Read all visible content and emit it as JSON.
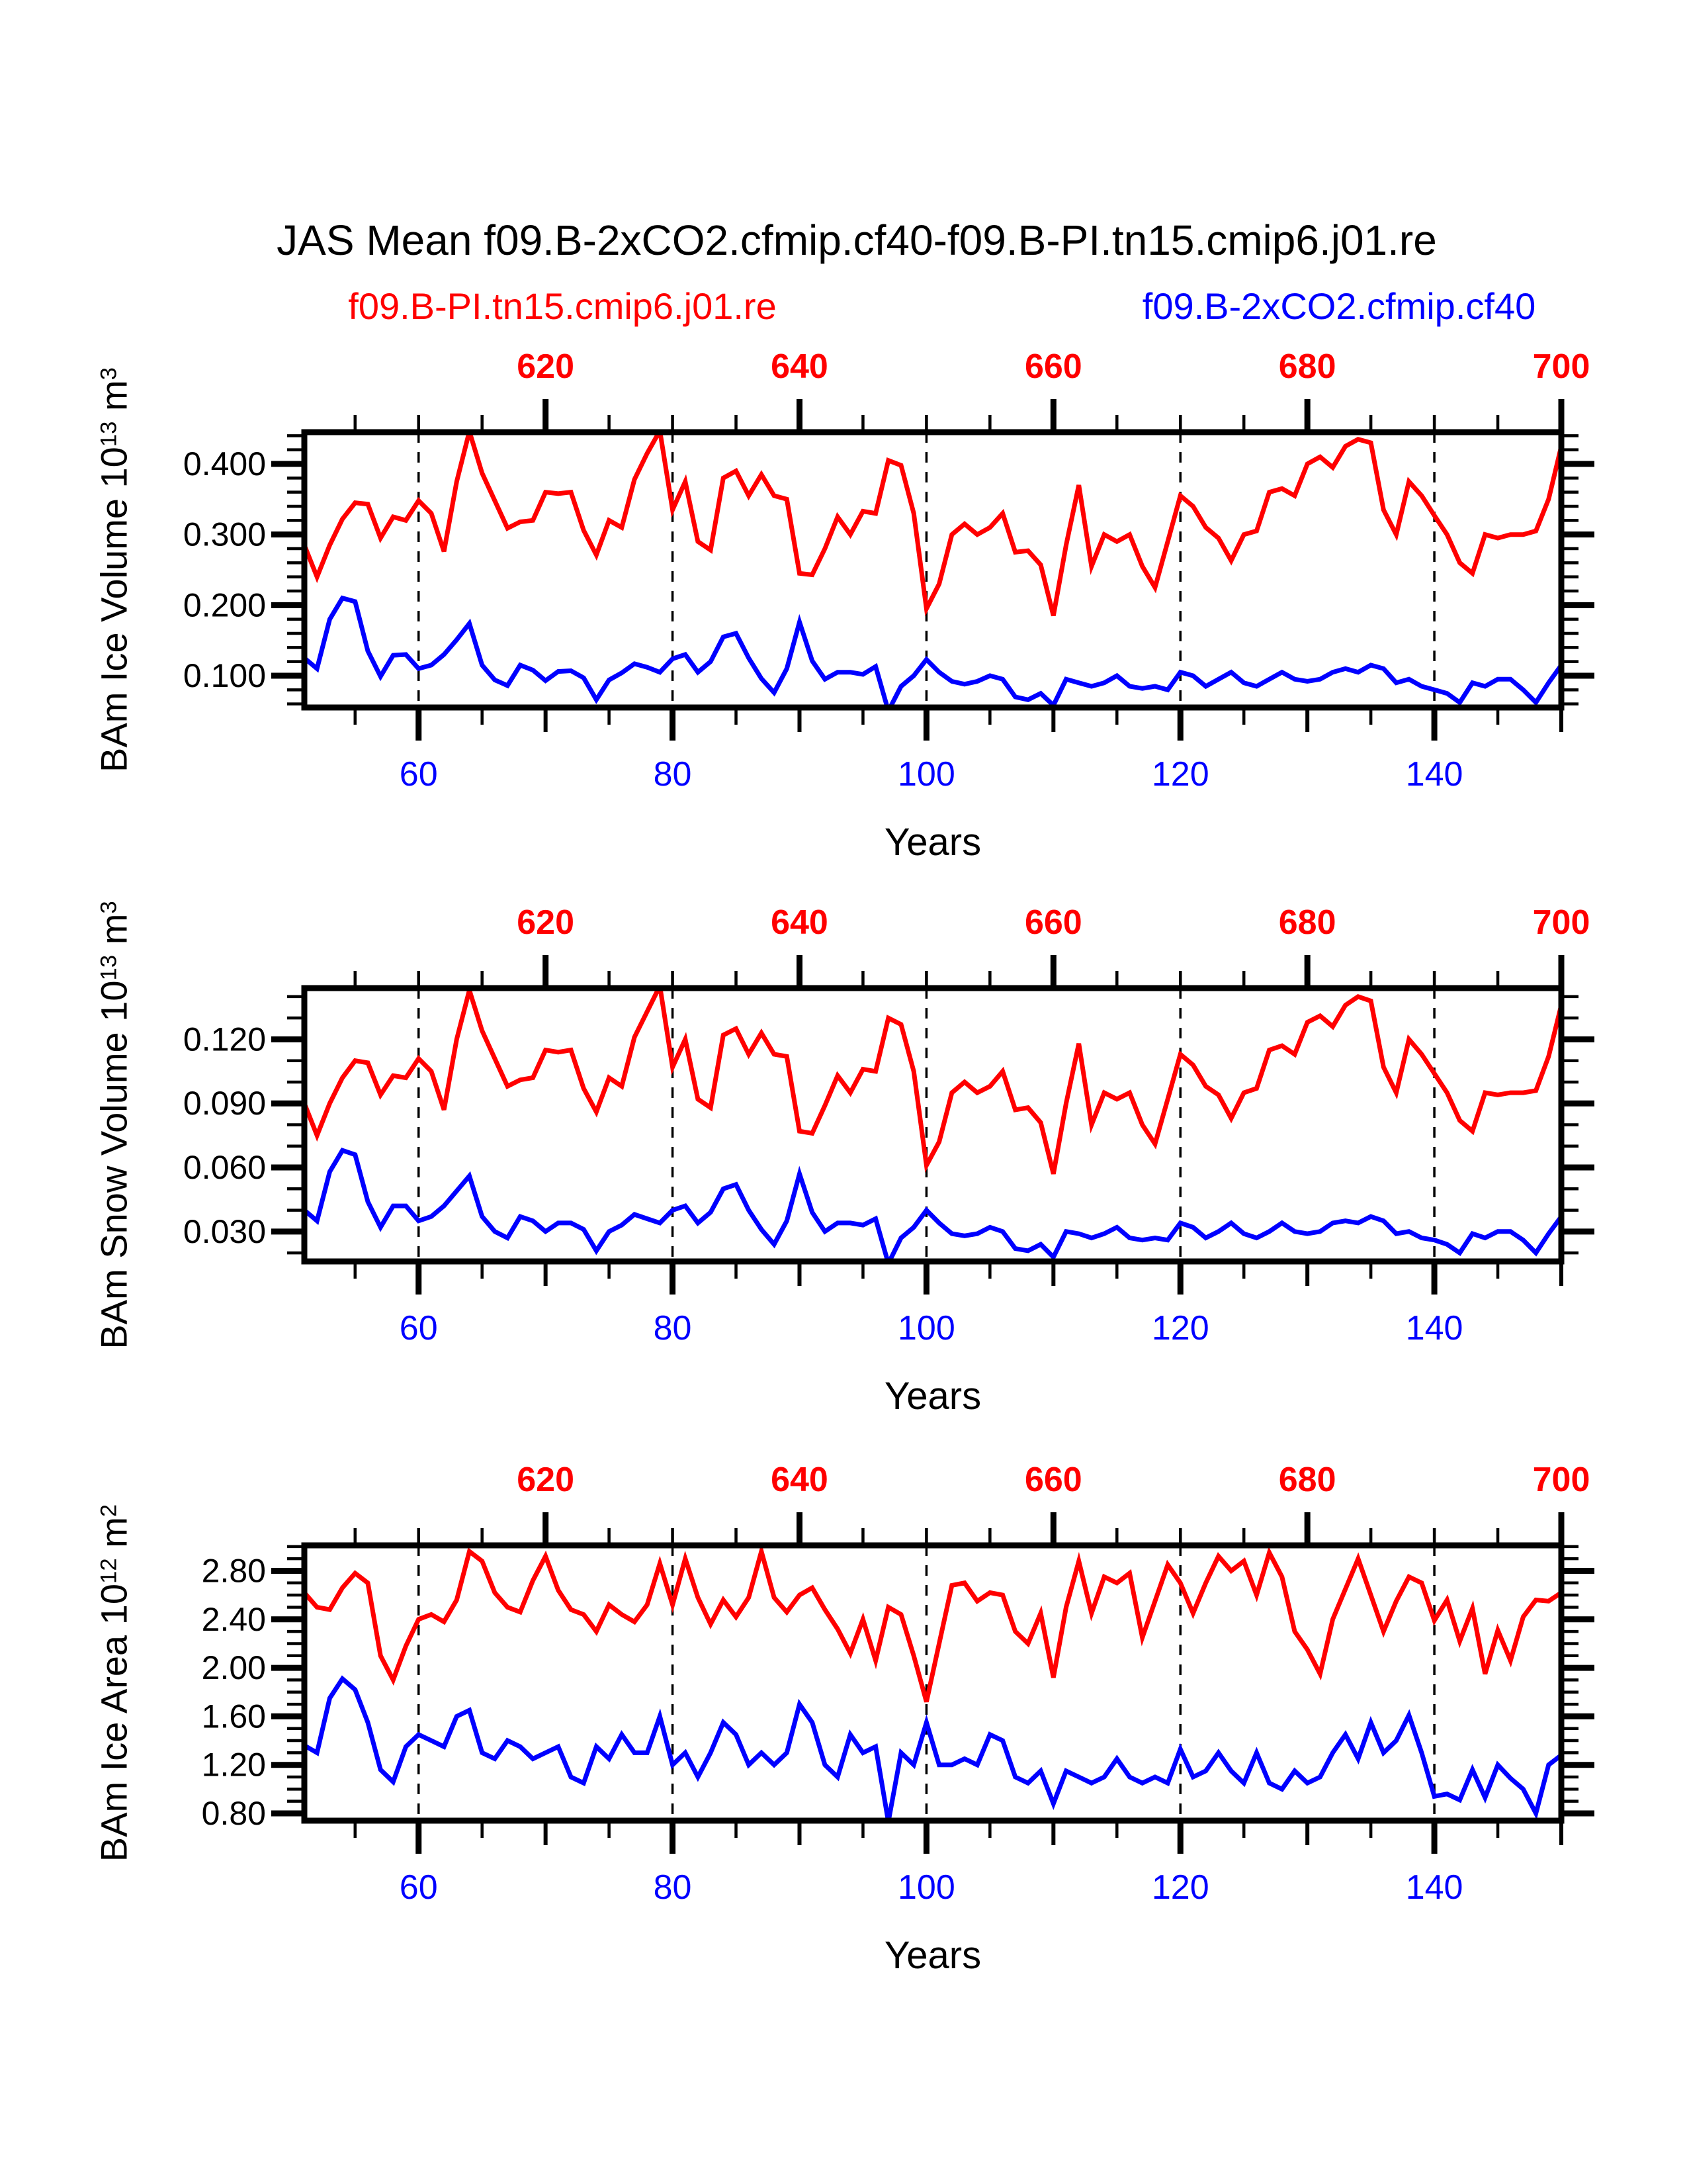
{
  "title": "JAS Mean f09.B-2xCO2.cfmip.cf40-f09.B-PI.tn15.cmip6.j01.re",
  "legend": {
    "red_label": "f09.B-PI.tn15.cmip6.j01.re",
    "blue_label": "f09.B-2xCO2.cfmip.cf40",
    "red_color": "#ff0000",
    "blue_color": "#0000ff"
  },
  "chart_data": [
    {
      "type": "line",
      "ylabel_segments": [
        {
          "text": "BAm Ice Volume 10"
        },
        {
          "text": "13",
          "superscript": true
        },
        {
          "text": " m"
        },
        {
          "text": "3",
          "superscript": true
        }
      ],
      "xlabel": "Years",
      "x_axis_bottom": {
        "color": "#0000ff",
        "range": [
          51,
          150
        ],
        "major_ticks": [
          60,
          80,
          100,
          120,
          140
        ],
        "labels": [
          "60",
          "80",
          "100",
          "120",
          "140"
        ],
        "medium_ticks": [
          70,
          90,
          110,
          130,
          150
        ],
        "minor_step": 5
      },
      "x_axis_top": {
        "color": "#ff0000",
        "range": [
          601,
          700
        ],
        "major_ticks": [
          620,
          640,
          660,
          680,
          700
        ],
        "labels": [
          "620",
          "640",
          "660",
          "680",
          "700"
        ],
        "minor_step": 5,
        "offset_from_bottom": 550
      },
      "y_axis": {
        "range": [
          0.055,
          0.445
        ],
        "major_ticks": [
          0.1,
          0.2,
          0.3,
          0.4
        ],
        "labels": [
          "0.100",
          "0.200",
          "0.300",
          "0.400"
        ],
        "minor_start": 0.06,
        "minor_step": 0.02
      },
      "gridlines_at": [
        60,
        80,
        100,
        120,
        140
      ],
      "grid": "vertical-dashed",
      "legend_position": "top",
      "x_values": {
        "start": 51,
        "end": 150,
        "step": 1
      },
      "series": [
        {
          "name": "f09.B-PI.tn15.cmip6.j01.re",
          "color": "#ff0000",
          "x_start": 601,
          "x_step": 1,
          "values": [
            0.285,
            0.24,
            0.285,
            0.322,
            0.345,
            0.343,
            0.295,
            0.325,
            0.32,
            0.348,
            0.33,
            0.276,
            0.375,
            0.446,
            0.387,
            0.348,
            0.309,
            0.318,
            0.32,
            0.36,
            0.358,
            0.36,
            0.306,
            0.271,
            0.32,
            0.31,
            0.378,
            0.415,
            0.447,
            0.335,
            0.375,
            0.29,
            0.278,
            0.38,
            0.39,
            0.355,
            0.385,
            0.355,
            0.35,
            0.245,
            0.243,
            0.28,
            0.325,
            0.3,
            0.333,
            0.33,
            0.405,
            0.398,
            0.33,
            0.195,
            0.23,
            0.3,
            0.315,
            0.3,
            0.31,
            0.33,
            0.275,
            0.277,
            0.257,
            0.185,
            0.285,
            0.37,
            0.255,
            0.3,
            0.29,
            0.3,
            0.255,
            0.225,
            0.29,
            0.355,
            0.34,
            0.31,
            0.295,
            0.263,
            0.3,
            0.305,
            0.36,
            0.365,
            0.355,
            0.4,
            0.41,
            0.395,
            0.425,
            0.435,
            0.43,
            0.335,
            0.3,
            0.375,
            0.355,
            0.327,
            0.3,
            0.26,
            0.245,
            0.3,
            0.295,
            0.3,
            0.3,
            0.305,
            0.35,
            0.425
          ]
        },
        {
          "name": "f09.B-2xCO2.cfmip.cf40",
          "color": "#0000ff",
          "x_start": 51,
          "x_step": 1,
          "values": [
            0.125,
            0.11,
            0.18,
            0.21,
            0.205,
            0.135,
            0.099,
            0.129,
            0.13,
            0.11,
            0.115,
            0.13,
            0.151,
            0.174,
            0.115,
            0.094,
            0.086,
            0.115,
            0.108,
            0.093,
            0.106,
            0.107,
            0.097,
            0.066,
            0.094,
            0.104,
            0.117,
            0.112,
            0.105,
            0.124,
            0.13,
            0.105,
            0.12,
            0.155,
            0.16,
            0.125,
            0.096,
            0.076,
            0.11,
            0.176,
            0.121,
            0.095,
            0.105,
            0.105,
            0.102,
            0.113,
            0.05,
            0.085,
            0.1,
            0.123,
            0.105,
            0.092,
            0.088,
            0.092,
            0.1,
            0.095,
            0.07,
            0.066,
            0.075,
            0.058,
            0.095,
            0.09,
            0.085,
            0.09,
            0.1,
            0.085,
            0.082,
            0.085,
            0.08,
            0.105,
            0.1,
            0.085,
            0.095,
            0.105,
            0.09,
            0.085,
            0.095,
            0.105,
            0.095,
            0.092,
            0.095,
            0.105,
            0.11,
            0.105,
            0.115,
            0.11,
            0.09,
            0.095,
            0.085,
            0.08,
            0.075,
            0.062,
            0.09,
            0.085,
            0.095,
            0.095,
            0.08,
            0.062,
            0.09,
            0.115
          ]
        }
      ]
    },
    {
      "type": "line",
      "ylabel_segments": [
        {
          "text": "BAm Snow Volume 10"
        },
        {
          "text": "13",
          "superscript": true
        },
        {
          "text": " m"
        },
        {
          "text": "3",
          "superscript": true
        }
      ],
      "xlabel": "Years",
      "x_axis_bottom": {
        "color": "#0000ff",
        "range": [
          51,
          150
        ],
        "major_ticks": [
          60,
          80,
          100,
          120,
          140
        ],
        "labels": [
          "60",
          "80",
          "100",
          "120",
          "140"
        ],
        "medium_ticks": [
          70,
          90,
          110,
          130,
          150
        ],
        "minor_step": 5
      },
      "x_axis_top": {
        "color": "#ff0000",
        "range": [
          601,
          700
        ],
        "major_ticks": [
          620,
          640,
          660,
          680,
          700
        ],
        "labels": [
          "620",
          "640",
          "660",
          "680",
          "700"
        ],
        "minor_step": 5,
        "offset_from_bottom": 550
      },
      "y_axis": {
        "range": [
          0.016,
          0.144
        ],
        "major_ticks": [
          0.03,
          0.06,
          0.09,
          0.12
        ],
        "labels": [
          "0.030",
          "0.060",
          "0.090",
          "0.120"
        ],
        "minor_start": 0.02,
        "minor_step": 0.01
      },
      "gridlines_at": [
        60,
        80,
        100,
        120,
        140
      ],
      "grid": "vertical-dashed",
      "legend_position": "top",
      "x_values": {
        "start": 51,
        "end": 150,
        "step": 1
      },
      "series": [
        {
          "name": "f09.B-PI.tn15.cmip6.j01.re",
          "color": "#ff0000",
          "x_start": 601,
          "x_step": 1,
          "values": [
            0.09,
            0.075,
            0.09,
            0.102,
            0.11,
            0.109,
            0.094,
            0.103,
            0.102,
            0.111,
            0.105,
            0.087,
            0.12,
            0.143,
            0.124,
            0.111,
            0.098,
            0.101,
            0.102,
            0.115,
            0.114,
            0.115,
            0.097,
            0.086,
            0.102,
            0.098,
            0.121,
            0.133,
            0.145,
            0.107,
            0.12,
            0.092,
            0.088,
            0.122,
            0.125,
            0.113,
            0.123,
            0.113,
            0.112,
            0.077,
            0.076,
            0.089,
            0.103,
            0.095,
            0.106,
            0.105,
            0.13,
            0.127,
            0.105,
            0.061,
            0.072,
            0.095,
            0.1,
            0.095,
            0.098,
            0.105,
            0.087,
            0.088,
            0.081,
            0.057,
            0.09,
            0.118,
            0.08,
            0.095,
            0.092,
            0.095,
            0.08,
            0.071,
            0.092,
            0.113,
            0.108,
            0.098,
            0.094,
            0.083,
            0.095,
            0.097,
            0.115,
            0.117,
            0.113,
            0.128,
            0.131,
            0.126,
            0.136,
            0.14,
            0.138,
            0.107,
            0.095,
            0.12,
            0.113,
            0.104,
            0.095,
            0.082,
            0.077,
            0.095,
            0.094,
            0.095,
            0.095,
            0.096,
            0.112,
            0.136
          ]
        },
        {
          "name": "f09.B-2xCO2.cfmip.cf40",
          "color": "#0000ff",
          "x_start": 51,
          "x_step": 1,
          "values": [
            0.04,
            0.035,
            0.058,
            0.068,
            0.066,
            0.044,
            0.032,
            0.042,
            0.042,
            0.035,
            0.037,
            0.042,
            0.049,
            0.056,
            0.037,
            0.03,
            0.027,
            0.037,
            0.035,
            0.03,
            0.034,
            0.034,
            0.031,
            0.021,
            0.03,
            0.033,
            0.038,
            0.036,
            0.034,
            0.04,
            0.042,
            0.034,
            0.039,
            0.05,
            0.052,
            0.04,
            0.031,
            0.024,
            0.035,
            0.057,
            0.039,
            0.03,
            0.034,
            0.034,
            0.033,
            0.036,
            0.015,
            0.027,
            0.032,
            0.04,
            0.034,
            0.029,
            0.028,
            0.029,
            0.032,
            0.03,
            0.022,
            0.021,
            0.024,
            0.018,
            0.03,
            0.029,
            0.027,
            0.029,
            0.032,
            0.027,
            0.026,
            0.027,
            0.026,
            0.034,
            0.032,
            0.027,
            0.03,
            0.034,
            0.029,
            0.027,
            0.03,
            0.034,
            0.03,
            0.029,
            0.03,
            0.034,
            0.035,
            0.034,
            0.037,
            0.035,
            0.029,
            0.03,
            0.027,
            0.026,
            0.024,
            0.02,
            0.029,
            0.027,
            0.03,
            0.03,
            0.026,
            0.02,
            0.029,
            0.037
          ]
        }
      ]
    },
    {
      "type": "line",
      "ylabel_segments": [
        {
          "text": "BAm Ice Area 10"
        },
        {
          "text": "12",
          "superscript": true
        },
        {
          "text": " m"
        },
        {
          "text": "2",
          "superscript": true
        }
      ],
      "xlabel": "Years",
      "x_axis_bottom": {
        "color": "#0000ff",
        "range": [
          51,
          150
        ],
        "major_ticks": [
          60,
          80,
          100,
          120,
          140
        ],
        "labels": [
          "60",
          "80",
          "100",
          "120",
          "140"
        ],
        "medium_ticks": [
          70,
          90,
          110,
          130,
          150
        ],
        "minor_step": 5
      },
      "x_axis_top": {
        "color": "#ff0000",
        "range": [
          601,
          700
        ],
        "major_ticks": [
          620,
          640,
          660,
          680,
          700
        ],
        "labels": [
          "620",
          "640",
          "660",
          "680",
          "700"
        ],
        "minor_step": 5,
        "offset_from_bottom": 550
      },
      "y_axis": {
        "range": [
          0.74,
          3.01
        ],
        "major_ticks": [
          0.8,
          1.2,
          1.6,
          2.0,
          2.4,
          2.8
        ],
        "labels": [
          "0.80",
          "1.20",
          "1.60",
          "2.00",
          "2.40",
          "2.80"
        ],
        "minor_start": 0.8,
        "minor_step": 0.1
      },
      "gridlines_at": [
        60,
        80,
        100,
        120,
        140
      ],
      "grid": "vertical-dashed",
      "legend_position": "top",
      "x_values": {
        "start": 51,
        "end": 150,
        "step": 1
      },
      "series": [
        {
          "name": "f09.B-PI.tn15.cmip6.j01.re",
          "color": "#ff0000",
          "x_start": 601,
          "x_step": 1,
          "values": [
            2.62,
            2.5,
            2.48,
            2.66,
            2.78,
            2.7,
            2.1,
            1.9,
            2.18,
            2.4,
            2.44,
            2.38,
            2.56,
            2.96,
            2.88,
            2.62,
            2.5,
            2.46,
            2.72,
            2.92,
            2.64,
            2.48,
            2.44,
            2.3,
            2.52,
            2.44,
            2.38,
            2.52,
            2.86,
            2.52,
            2.9,
            2.58,
            2.36,
            2.56,
            2.42,
            2.58,
            2.96,
            2.58,
            2.46,
            2.6,
            2.66,
            2.48,
            2.32,
            2.12,
            2.4,
            2.06,
            2.5,
            2.44,
            2.1,
            1.72,
            2.2,
            2.68,
            2.7,
            2.55,
            2.62,
            2.6,
            2.3,
            2.2,
            2.45,
            1.92,
            2.5,
            2.88,
            2.45,
            2.75,
            2.7,
            2.78,
            2.25,
            2.55,
            2.85,
            2.7,
            2.45,
            2.7,
            2.92,
            2.8,
            2.88,
            2.6,
            2.95,
            2.75,
            2.3,
            2.15,
            1.95,
            2.4,
            2.65,
            2.9,
            2.6,
            2.3,
            2.55,
            2.75,
            2.7,
            2.39,
            2.56,
            2.22,
            2.49,
            1.95,
            2.31,
            2.06,
            2.42,
            2.56,
            2.55,
            2.62
          ]
        },
        {
          "name": "f09.B-2xCO2.cfmip.cf40",
          "color": "#0000ff",
          "x_start": 51,
          "x_step": 1,
          "values": [
            1.36,
            1.3,
            1.75,
            1.91,
            1.82,
            1.55,
            1.16,
            1.06,
            1.35,
            1.45,
            1.4,
            1.35,
            1.6,
            1.65,
            1.3,
            1.25,
            1.4,
            1.35,
            1.25,
            1.3,
            1.35,
            1.1,
            1.05,
            1.35,
            1.25,
            1.45,
            1.3,
            1.3,
            1.6,
            1.2,
            1.3,
            1.1,
            1.3,
            1.55,
            1.45,
            1.2,
            1.3,
            1.2,
            1.3,
            1.7,
            1.55,
            1.2,
            1.1,
            1.45,
            1.3,
            1.35,
            0.73,
            1.3,
            1.2,
            1.55,
            1.2,
            1.2,
            1.25,
            1.2,
            1.45,
            1.4,
            1.1,
            1.05,
            1.15,
            0.88,
            1.15,
            1.1,
            1.05,
            1.1,
            1.25,
            1.1,
            1.05,
            1.1,
            1.05,
            1.33,
            1.1,
            1.15,
            1.3,
            1.15,
            1.05,
            1.3,
            1.05,
            1.0,
            1.15,
            1.05,
            1.1,
            1.3,
            1.45,
            1.25,
            1.55,
            1.3,
            1.4,
            1.61,
            1.3,
            0.94,
            0.96,
            0.91,
            1.16,
            0.93,
            1.2,
            1.09,
            1.0,
            0.8,
            1.2,
            1.28
          ]
        }
      ]
    }
  ]
}
